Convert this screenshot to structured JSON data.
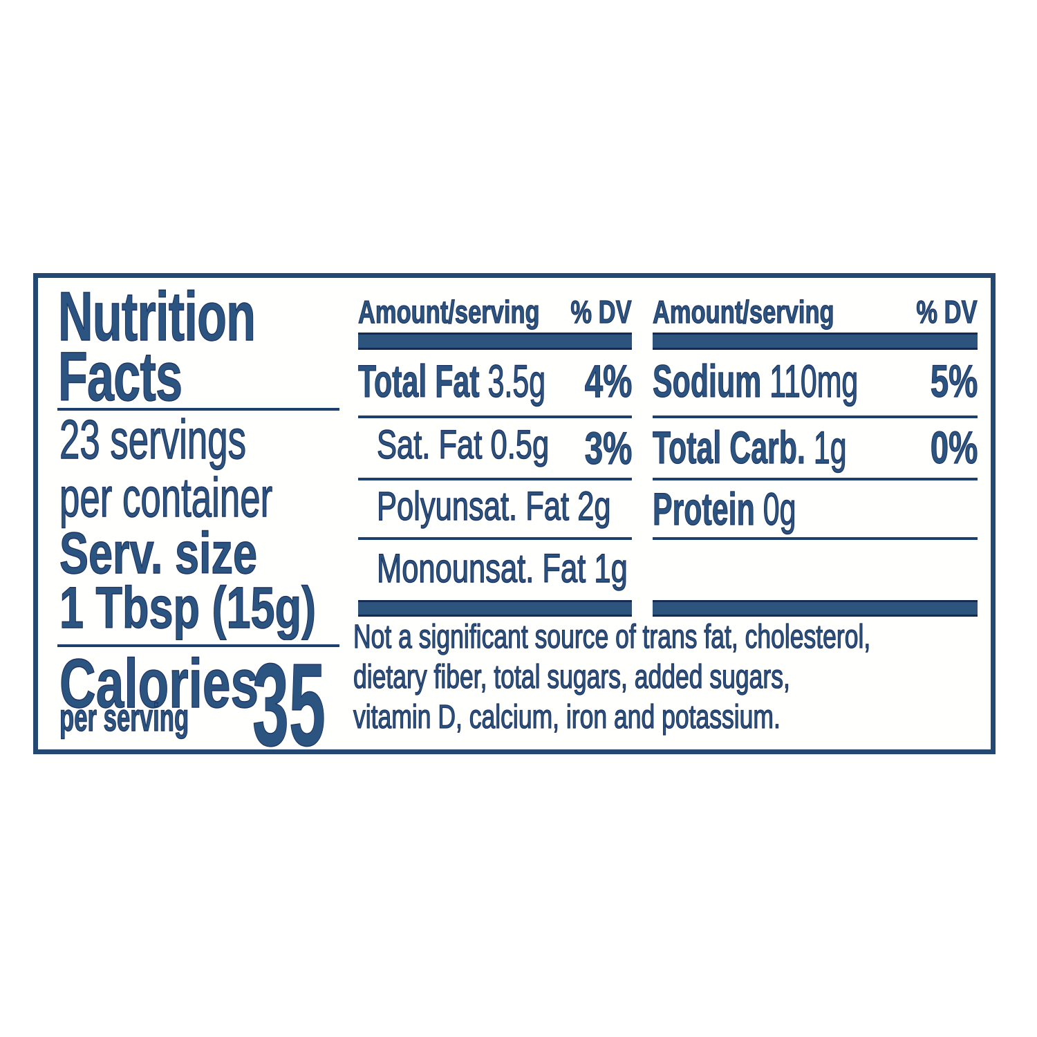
{
  "label": {
    "title_lines": [
      "Nutrition",
      "Facts"
    ],
    "servings_per_container_lines": [
      "23 servings",
      "per container"
    ],
    "serving_size_lines": [
      "Serv. size",
      "1 Tbsp (15g)"
    ],
    "calories": {
      "label": "Calories",
      "sub_label": "per serving",
      "value": "35"
    },
    "columns": [
      {
        "header_amount": "Amount/serving",
        "header_dv": "% DV",
        "rows": [
          {
            "name": "Total Fat",
            "amount": "3.5g",
            "dv": "4%"
          },
          {
            "name": "Sat. Fat",
            "amount": "0.5g",
            "dv": "3%"
          },
          {
            "name": "Polyunsat. Fat",
            "amount": "2g",
            "dv": ""
          },
          {
            "name": "Monounsat. Fat",
            "amount": "1g",
            "dv": ""
          }
        ]
      },
      {
        "header_amount": "Amount/serving",
        "header_dv": "% DV",
        "rows": [
          {
            "name": "Sodium",
            "amount": "110mg",
            "dv": "5%"
          },
          {
            "name": "Total Carb.",
            "amount": "1g",
            "dv": "0%"
          },
          {
            "name": "Protein",
            "amount": "0g",
            "dv": ""
          }
        ]
      }
    ],
    "footnote_lines": [
      "Not a significant source of trans fat, cholesterol,",
      "dietary fiber, total sugars, added sugars,",
      "vitamin D, calcium, iron and potassium."
    ],
    "colors": {
      "navy_text": "#2b5580",
      "navy_outline": "#1d3260",
      "bar_fill": "#2c547c",
      "bar_edge": "#152a52",
      "border": "#234872",
      "background": "#ffffff"
    }
  }
}
